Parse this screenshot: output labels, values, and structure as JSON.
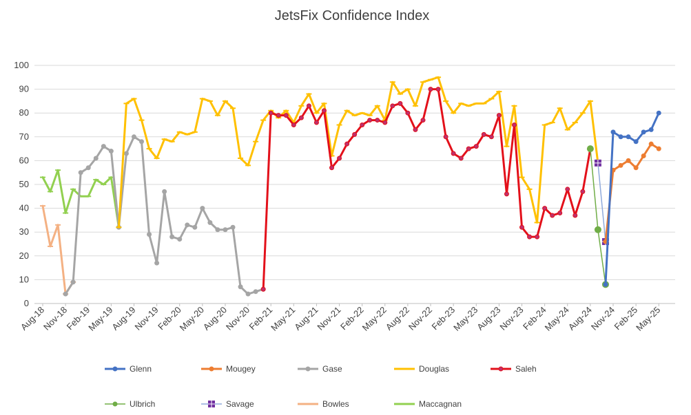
{
  "chart_data": {
    "type": "line",
    "title": "JetsFix Confidence Index",
    "xlabel": "",
    "ylabel": "",
    "ylim": [
      0,
      100
    ],
    "yticks": [
      0,
      10,
      20,
      30,
      40,
      50,
      60,
      70,
      80,
      90,
      100
    ],
    "grid": true,
    "legend": "bottom",
    "x_tick_labels": [
      "Aug-18",
      "Nov-18",
      "Feb-19",
      "May-19",
      "Aug-19",
      "Nov-19",
      "Feb-20",
      "May-20",
      "Aug-20",
      "Nov-20",
      "Feb-21",
      "May-21",
      "Aug-21",
      "Nov-21",
      "Feb-22",
      "May-22",
      "Aug-22",
      "Nov-22",
      "Feb-23",
      "May-23",
      "Aug-23",
      "Nov-23",
      "Feb-24",
      "May-24",
      "Aug-24",
      "Nov-24",
      "Feb-25",
      "May-25"
    ],
    "series": [
      {
        "name": "Glenn",
        "color": "#4472C4",
        "marker": "circle",
        "line": true,
        "start": "2024-10",
        "values": [
          8,
          72,
          70,
          70,
          68,
          72,
          73,
          80
        ]
      },
      {
        "name": "Mougey",
        "color": "#ED7D31",
        "marker": "circle",
        "line": true,
        "start": "2024-10",
        "values": [
          26,
          56,
          58,
          60,
          57,
          62,
          67,
          65
        ]
      },
      {
        "name": "Gase",
        "color": "#A5A5A5",
        "marker": "circle",
        "line": true,
        "start": "2018-11",
        "values": [
          4,
          9,
          55,
          57,
          61,
          66,
          64,
          32,
          63,
          70,
          68,
          29,
          17,
          47,
          28,
          27,
          33,
          32,
          40,
          34,
          31,
          31,
          32,
          7,
          4,
          5,
          6
        ]
      },
      {
        "name": "Douglas",
        "color": "#FFC000",
        "marker": "dash",
        "line": true,
        "start": "2019-06",
        "values": [
          32,
          84,
          86,
          77,
          65,
          61,
          69,
          68,
          72,
          71,
          72,
          86,
          85,
          79,
          85,
          82,
          61,
          58,
          68,
          77,
          81,
          78,
          81,
          76,
          83,
          88,
          80,
          84,
          62,
          75,
          81,
          79,
          80,
          79,
          83,
          77,
          93,
          88,
          90,
          83,
          93,
          94,
          95,
          85,
          80,
          84,
          83,
          84,
          84,
          86,
          89,
          66,
          83,
          53,
          48,
          34,
          75,
          76,
          82,
          73,
          76,
          80,
          85,
          59
        ]
      },
      {
        "name": "Saleh",
        "color": "#E3101A",
        "marker": "dot",
        "line": true,
        "start": "2021-01",
        "values": [
          6,
          80,
          79,
          79,
          75,
          78,
          83,
          76,
          81,
          57,
          61,
          67,
          71,
          75,
          77,
          77,
          76,
          83,
          84,
          80,
          73,
          77,
          90,
          90,
          70,
          63,
          61,
          65,
          66,
          71,
          70,
          79,
          46,
          75,
          32,
          28,
          28,
          40,
          37,
          38,
          48,
          37,
          47,
          65
        ]
      },
      {
        "name": "Ulbrich",
        "color": "#70AD47",
        "marker": "circle",
        "line": true,
        "start": "2024-08",
        "values": [
          65,
          31,
          8
        ]
      },
      {
        "name": "Savage",
        "color": "#8FAADC",
        "marker": "square",
        "line": true,
        "start": "2024-09",
        "values": [
          59,
          26
        ]
      },
      {
        "name": "Bowles",
        "color": "#F4B183",
        "marker": "dash",
        "line": true,
        "start": "2018-08",
        "values": [
          41,
          24,
          33,
          4,
          9
        ]
      },
      {
        "name": "Maccagnan",
        "color": "#92D050",
        "marker": "dash",
        "line": true,
        "start": "2018-08",
        "values": [
          53,
          47,
          56,
          38,
          48,
          45,
          45,
          52,
          50,
          53,
          32
        ]
      }
    ]
  }
}
